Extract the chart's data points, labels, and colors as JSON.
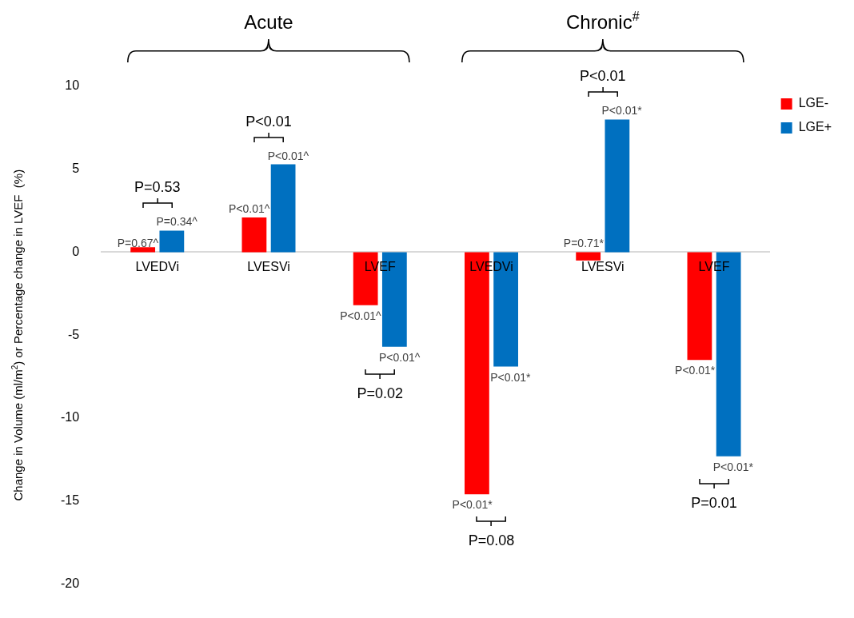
{
  "chart_data": {
    "type": "bar",
    "ylabel": "Change in Volume (ml/m$^{2}$) or Percentage change in LVEF  (%)",
    "categories": [
      "LVEDVi",
      "LVESVi",
      "LVEF",
      "LVEDVi",
      "LVESVi",
      "LVEF"
    ],
    "series": [
      {
        "name": "LGE-",
        "color": "#ff0000",
        "values": [
          0.3,
          2.1,
          -3.2,
          -14.6,
          -0.5,
          -6.5
        ]
      },
      {
        "name": "LGE+",
        "color": "#0070c0",
        "values": [
          1.3,
          5.3,
          -5.7,
          -6.9,
          8.0,
          -12.3
        ]
      }
    ],
    "ylim": [
      -20,
      10
    ],
    "yticks": [
      -20,
      -15,
      -10,
      -5,
      0,
      5,
      10
    ],
    "grid": false,
    "legend": "top right",
    "annotations": [
      "Acute",
      "Chronic$^{#}$",
      "P=0.53",
      "P<0.01",
      "P=0.02",
      "P=0.08",
      "P<0.01",
      "P=0.01",
      "P=0.67^",
      "P<0.01^",
      "P<0.01^",
      "P<0.01*",
      "P=0.71*",
      "P<0.01*",
      "P=0.34^",
      "P<0.01^",
      "P<0.01^",
      "P<0.01*",
      "P<0.01*",
      "P<0.01*"
    ]
  }
}
